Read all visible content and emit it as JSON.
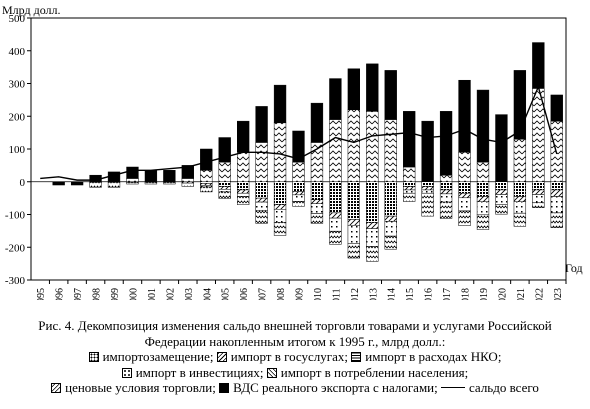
{
  "chart_data": {
    "type": "bar",
    "stacked": true,
    "ylabel": "Млрд долл.",
    "xlabel": "Год",
    "ylim": [
      -300,
      500
    ],
    "yticks": [
      -300,
      -200,
      -100,
      0,
      100,
      200,
      300,
      400,
      500
    ],
    "categories": [
      "1995",
      "1996",
      "1997",
      "1998",
      "1999",
      "2000",
      "2001",
      "2002",
      "2003",
      "2004",
      "2005",
      "2006",
      "2007",
      "2008",
      "2009",
      "2010",
      "2011",
      "2012",
      "2013",
      "2014",
      "2015",
      "2016",
      "2017",
      "2018",
      "2019",
      "2020",
      "2021",
      "2022",
      "2023"
    ],
    "series": [
      {
        "key": "import_sub",
        "name": "импортозамещение",
        "pattern": "dots-dense",
        "values": [
          0,
          0,
          0,
          0,
          0,
          0,
          0,
          0,
          0,
          -5,
          -15,
          -25,
          -50,
          -70,
          -30,
          -55,
          -95,
          -115,
          -125,
          -105,
          -15,
          -15,
          -25,
          -35,
          -45,
          -25,
          -45,
          -25,
          -25
        ]
      },
      {
        "key": "gov_import",
        "name": "импорт в госуслугах",
        "pattern": "diag",
        "values": [
          0,
          0,
          0,
          -2,
          -2,
          -2,
          -2,
          -2,
          -4,
          -6,
          -8,
          -10,
          -12,
          -14,
          -10,
          -12,
          -16,
          -18,
          -18,
          -16,
          -10,
          -10,
          -12,
          -14,
          -16,
          -14,
          -16,
          -14,
          -20
        ]
      },
      {
        "key": "nko_import",
        "name": "импорт в расходах НКО",
        "pattern": "hlines",
        "values": [
          0,
          0,
          0,
          0,
          0,
          0,
          0,
          0,
          0,
          0,
          0,
          0,
          0,
          0,
          0,
          0,
          0,
          0,
          0,
          0,
          0,
          0,
          0,
          0,
          0,
          0,
          0,
          0,
          0
        ]
      },
      {
        "key": "inv_import",
        "name": "импорт в инвестициях",
        "pattern": "dots-sparse",
        "values": [
          0,
          0,
          0,
          0,
          0,
          0,
          0,
          0,
          0,
          -5,
          -8,
          -10,
          -25,
          -40,
          -20,
          -30,
          -40,
          -55,
          -55,
          -45,
          -10,
          -10,
          -25,
          -40,
          -40,
          -30,
          -35,
          -25,
          -50
        ]
      },
      {
        "key": "cons_import",
        "name": "импорт в потреблении населения",
        "pattern": "zigzag",
        "values": [
          0,
          0,
          0,
          -15,
          -15,
          -5,
          -5,
          -5,
          -10,
          -15,
          -20,
          -25,
          -40,
          -40,
          -15,
          -30,
          -40,
          -45,
          -45,
          -40,
          -25,
          -70,
          -50,
          -45,
          -45,
          -30,
          -40,
          -15,
          -45
        ]
      },
      {
        "key": "price",
        "name": "ценовые условия торговли",
        "pattern": "zigzag-up",
        "values": [
          0,
          0,
          0,
          0,
          0,
          10,
          0,
          0,
          10,
          35,
          60,
          90,
          120,
          180,
          60,
          120,
          190,
          220,
          215,
          190,
          45,
          0,
          20,
          90,
          60,
          0,
          130,
          285,
          185
        ]
      },
      {
        "key": "gdp",
        "name": "ВДС реального экспорта с налогами",
        "pattern": "solid",
        "values": [
          0,
          -10,
          -10,
          20,
          30,
          35,
          35,
          35,
          40,
          65,
          75,
          95,
          110,
          115,
          95,
          120,
          125,
          125,
          145,
          150,
          170,
          185,
          195,
          220,
          220,
          205,
          210,
          140,
          80
        ]
      }
    ],
    "total_series": {
      "name": "сальдо всего",
      "values": [
        10,
        15,
        5,
        5,
        20,
        35,
        35,
        40,
        45,
        60,
        75,
        90,
        90,
        85,
        70,
        100,
        135,
        120,
        140,
        145,
        150,
        135,
        140,
        160,
        130,
        120,
        155,
        290,
        85
      ]
    }
  },
  "figure": {
    "caption_line1": "Рис. 4. Декомпозиция изменения сальдо внешней торговли товарами и услугами Российской",
    "caption_line2": "Федерации накопленным итогом к 1995 г., млрд долл.:",
    "sep": ";"
  }
}
